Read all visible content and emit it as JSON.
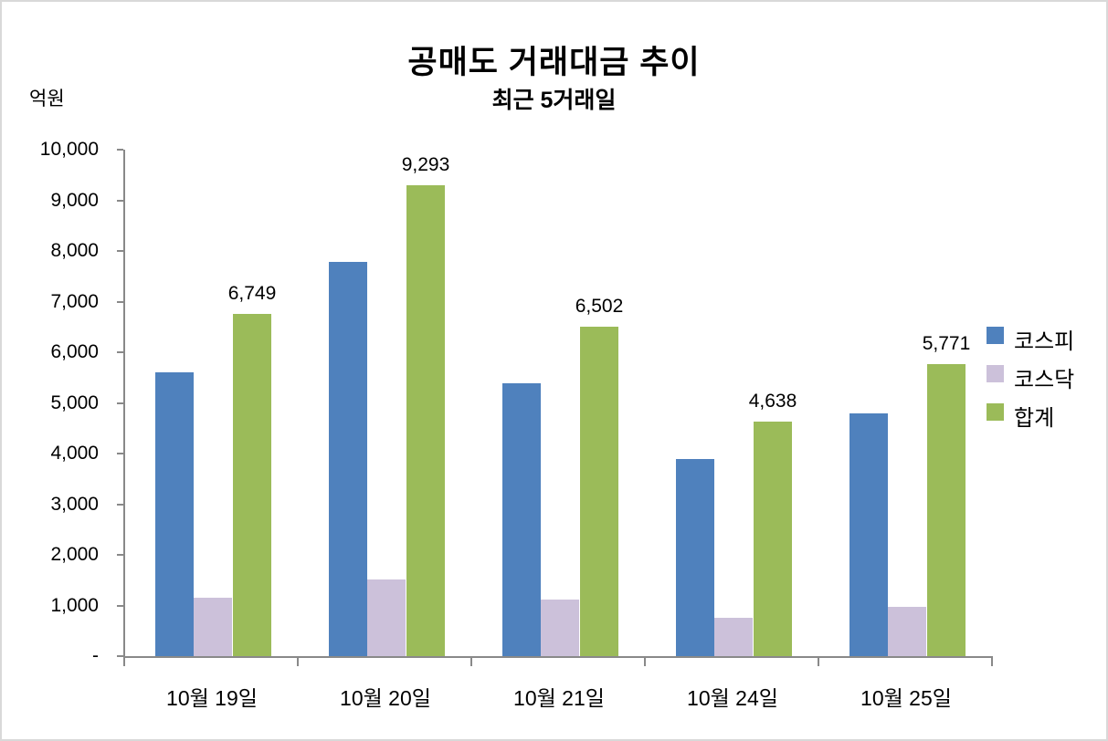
{
  "chart_data": {
    "type": "bar",
    "title": "공매도 거래대금 추이",
    "subtitle": "최근 5거래일",
    "unit": "억원",
    "categories": [
      "10월 19일",
      "10월 20일",
      "10월 21일",
      "10월 24일",
      "10월 25일"
    ],
    "series": [
      {
        "name": "코스피",
        "color": "#4F81BD",
        "values": [
          5597,
          7783,
          5390,
          3890,
          4790
        ]
      },
      {
        "name": "코스닥",
        "color": "#CCC1DA",
        "values": [
          1152,
          1510,
          1112,
          748,
          981
        ]
      },
      {
        "name": "합계",
        "color": "#9BBB59",
        "values": [
          6749,
          9293,
          6502,
          4638,
          5771
        ],
        "data_labels": [
          "6,749",
          "9,293",
          "6,502",
          "4,638",
          "5,771"
        ]
      }
    ],
    "ylim": [
      0,
      10000
    ],
    "ytick_step": 1000,
    "ytick_labels": [
      "-",
      "1,000",
      "2,000",
      "3,000",
      "4,000",
      "5,000",
      "6,000",
      "7,000",
      "8,000",
      "9,000",
      "10,000"
    ],
    "grid": false,
    "legend_position": "right",
    "axis_color": "#898989",
    "frame_border_color": "#D9D9D9"
  }
}
